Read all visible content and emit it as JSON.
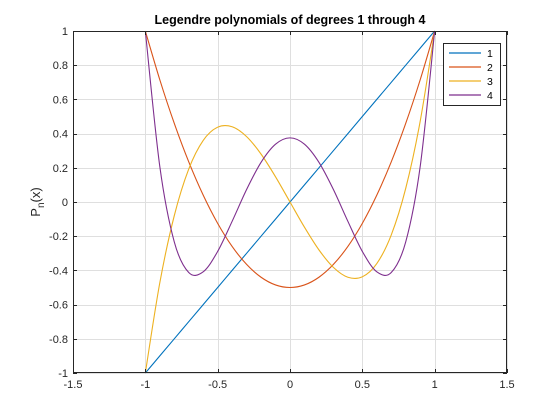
{
  "chart_data": {
    "type": "line",
    "title": "Legendre polynomials of degrees 1 through 4",
    "xlabel": "",
    "ylabel": "P",
    "ylabel_subscript": "n",
    "ylabel_suffix": "(x)",
    "xlim": [
      -1.5,
      1.5
    ],
    "ylim": [
      -1,
      1
    ],
    "xticks": [
      -1.5,
      -1,
      -0.5,
      0,
      0.5,
      1,
      1.5
    ],
    "xtick_labels": [
      "-1.5",
      "-1",
      "-0.5",
      "0",
      "0.5",
      "1",
      "1.5"
    ],
    "yticks": [
      -1,
      -0.8,
      -0.6,
      -0.4,
      -0.2,
      0,
      0.2,
      0.4,
      0.6,
      0.8,
      1
    ],
    "ytick_labels": [
      "-1",
      "-0.8",
      "-0.6",
      "-0.4",
      "-0.2",
      "0",
      "0.2",
      "0.4",
      "0.6",
      "0.8",
      "1"
    ],
    "grid": true,
    "legend_position": "top-right",
    "x": [
      -1,
      -0.9,
      -0.8,
      -0.7,
      -0.6,
      -0.5,
      -0.4,
      -0.3,
      -0.2,
      -0.1,
      0,
      0.1,
      0.2,
      0.3,
      0.4,
      0.5,
      0.6,
      0.7,
      0.8,
      0.9,
      1
    ],
    "series": [
      {
        "name": "1",
        "color": "#0072bd",
        "values": [
          -1,
          -0.9,
          -0.8,
          -0.7,
          -0.6,
          -0.5,
          -0.4,
          -0.3,
          -0.2,
          -0.1,
          0,
          0.1,
          0.2,
          0.3,
          0.4,
          0.5,
          0.6,
          0.7,
          0.8,
          0.9,
          1
        ]
      },
      {
        "name": "2",
        "color": "#d95319",
        "values": [
          1,
          0.715,
          0.46,
          0.235,
          0.04,
          -0.125,
          -0.26,
          -0.365,
          -0.44,
          -0.485,
          -0.5,
          -0.485,
          -0.44,
          -0.365,
          -0.26,
          -0.125,
          0.04,
          0.235,
          0.46,
          0.715,
          1
        ]
      },
      {
        "name": "3",
        "color": "#edb120",
        "values": [
          -1,
          -0.4725,
          -0.08,
          0.1925,
          0.36,
          0.4375,
          0.44,
          0.3825,
          0.28,
          0.1475,
          0,
          -0.1475,
          -0.28,
          -0.3825,
          -0.44,
          -0.4375,
          -0.36,
          -0.1925,
          0.08,
          0.4725,
          1
        ]
      },
      {
        "name": "4",
        "color": "#7e2f8e",
        "values": [
          1,
          0.2079,
          -0.233,
          -0.4121,
          -0.408,
          -0.2891,
          -0.113,
          0.0729,
          0.232,
          0.3379,
          0.375,
          0.3379,
          0.232,
          0.0729,
          -0.113,
          -0.2891,
          -0.408,
          -0.4121,
          -0.233,
          0.2079,
          1
        ]
      }
    ]
  }
}
